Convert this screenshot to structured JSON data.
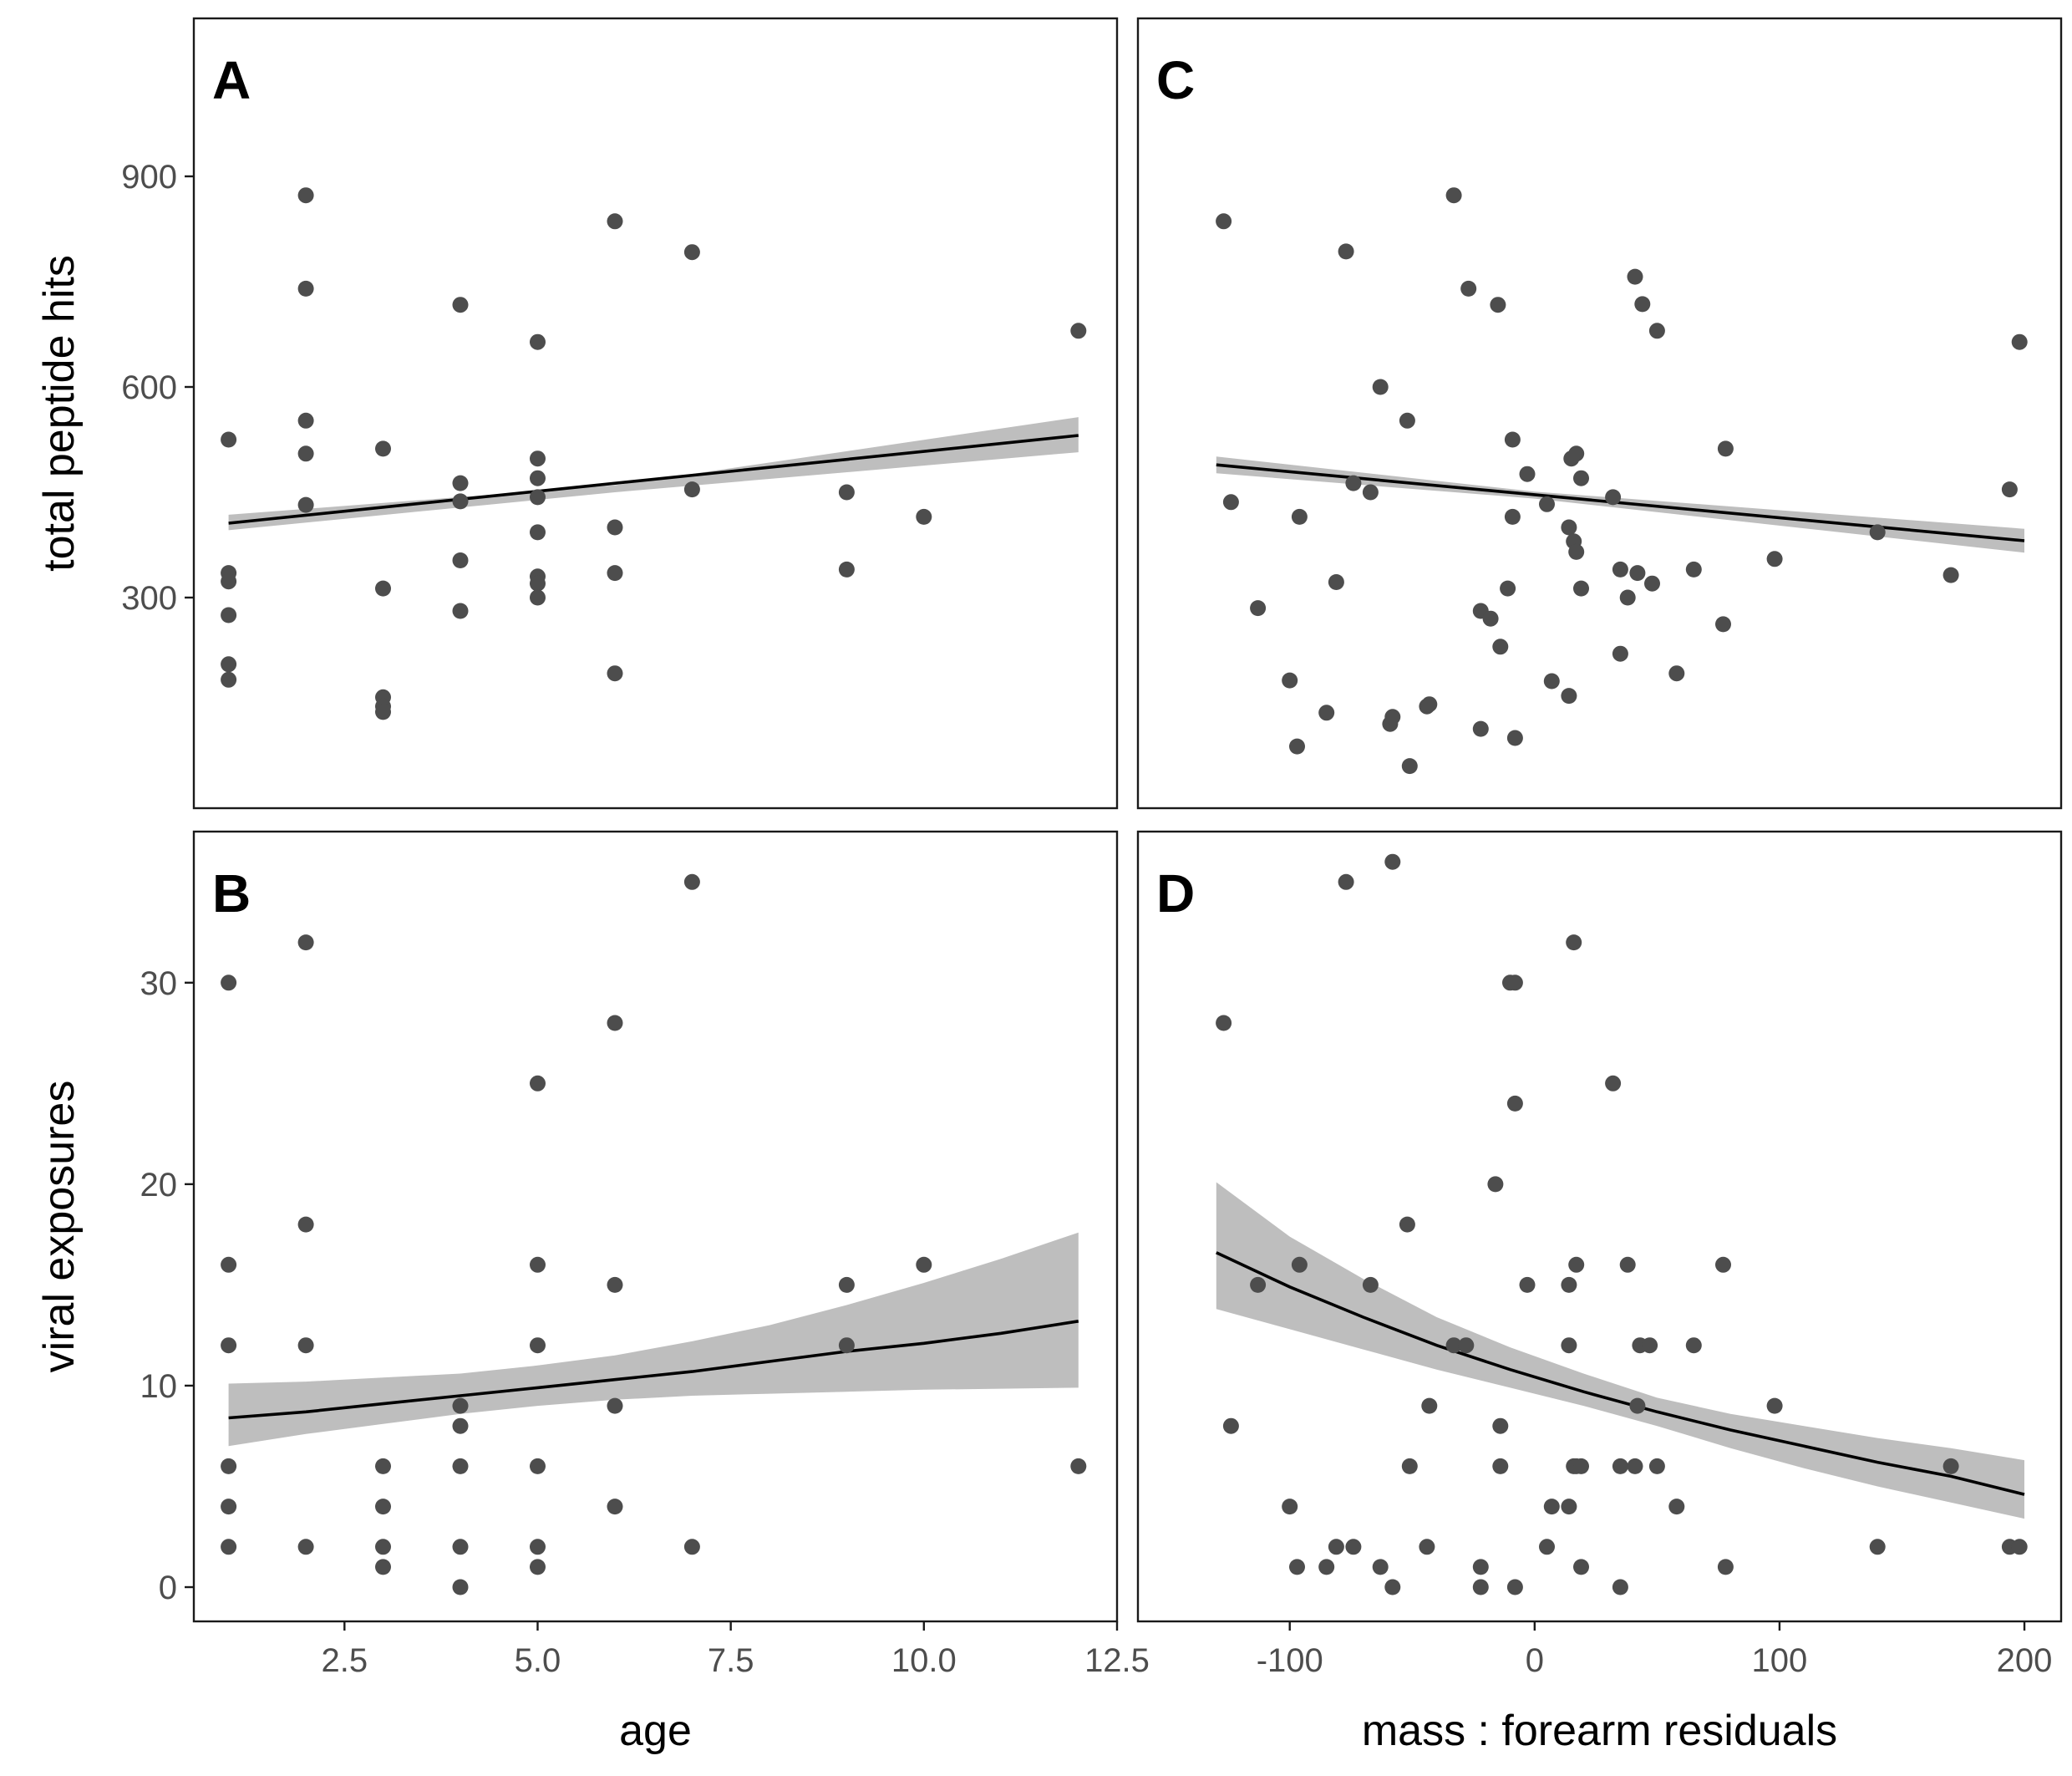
{
  "colors": {
    "point": "#4d4d4d",
    "line": "#000000",
    "ribbon": "#bebebe",
    "frame": "#1a1a1a",
    "tick_text": "#4d4d4d"
  },
  "chart_data": [
    {
      "panel": "A",
      "type": "scatter",
      "xlabel": "",
      "ylabel": "total peptide hits",
      "xlim": [
        0.55,
        12.5
      ],
      "ylim": [
        0,
        1125
      ],
      "xticks": [],
      "yticks": [
        300,
        600,
        900
      ],
      "points": [
        [
          1,
          525
        ],
        [
          1,
          335
        ],
        [
          1,
          323
        ],
        [
          1,
          275
        ],
        [
          1,
          205
        ],
        [
          1,
          183
        ],
        [
          2,
          873
        ],
        [
          2,
          740
        ],
        [
          2,
          552
        ],
        [
          2,
          505
        ],
        [
          2,
          432
        ],
        [
          3,
          512
        ],
        [
          3,
          313
        ],
        [
          3,
          158
        ],
        [
          3,
          145
        ],
        [
          3,
          137
        ],
        [
          4,
          717
        ],
        [
          4,
          463
        ],
        [
          4,
          437
        ],
        [
          4,
          353
        ],
        [
          4,
          281
        ],
        [
          5,
          664
        ],
        [
          5,
          498
        ],
        [
          5,
          470
        ],
        [
          5,
          443
        ],
        [
          5,
          393
        ],
        [
          5,
          330
        ],
        [
          5,
          320
        ],
        [
          5,
          300
        ],
        [
          6,
          836
        ],
        [
          6,
          400
        ],
        [
          6,
          335
        ],
        [
          6,
          192
        ],
        [
          7,
          792
        ],
        [
          7,
          454
        ],
        [
          9,
          450
        ],
        [
          9,
          340
        ],
        [
          10,
          415
        ],
        [
          12,
          680
        ]
      ],
      "fit": {
        "x": [
          1,
          12
        ],
        "y": [
          406,
          531
        ]
      },
      "ribbon": {
        "x": [
          1,
          6,
          12
        ],
        "lower": [
          396,
          450,
          507
        ],
        "upper": [
          418,
          460,
          557
        ]
      }
    },
    {
      "panel": "C",
      "type": "scatter",
      "xlabel": "",
      "ylabel": "",
      "xlim": [
        -162,
        215
      ],
      "ylim": [
        0,
        1125
      ],
      "xticks": [],
      "yticks": [],
      "points": [
        [
          -127,
          836
        ],
        [
          -124,
          436
        ],
        [
          -113,
          285
        ],
        [
          -100,
          182
        ],
        [
          -97,
          88
        ],
        [
          -96,
          415
        ],
        [
          -85,
          136
        ],
        [
          -81,
          322
        ],
        [
          -77,
          793
        ],
        [
          -74,
          463
        ],
        [
          -67,
          450
        ],
        [
          -63,
          600
        ],
        [
          -59,
          120
        ],
        [
          -58,
          130
        ],
        [
          -52,
          552
        ],
        [
          -51,
          60
        ],
        [
          -44,
          145
        ],
        [
          -43,
          148
        ],
        [
          -33,
          873
        ],
        [
          -27,
          740
        ],
        [
          -22,
          113
        ],
        [
          -22,
          281
        ],
        [
          -18,
          270
        ],
        [
          -15,
          717
        ],
        [
          -14,
          230
        ],
        [
          -11,
          313
        ],
        [
          -9,
          525
        ],
        [
          -9,
          415
        ],
        [
          -8,
          100
        ],
        [
          -3,
          476
        ],
        [
          5,
          433
        ],
        [
          7,
          181
        ],
        [
          14,
          160
        ],
        [
          14,
          400
        ],
        [
          15,
          498
        ],
        [
          16,
          380
        ],
        [
          17,
          365
        ],
        [
          17,
          505
        ],
        [
          19,
          470
        ],
        [
          19,
          313
        ],
        [
          32,
          443
        ],
        [
          35,
          220
        ],
        [
          35,
          340
        ],
        [
          38,
          300
        ],
        [
          41,
          757
        ],
        [
          42,
          335
        ],
        [
          44,
          718
        ],
        [
          48,
          320
        ],
        [
          50,
          680
        ],
        [
          58,
          192
        ],
        [
          65,
          340
        ],
        [
          77,
          262
        ],
        [
          78,
          512
        ],
        [
          98,
          355
        ],
        [
          140,
          393
        ],
        [
          170,
          332
        ],
        [
          194,
          454
        ],
        [
          198,
          664
        ]
      ],
      "fit": {
        "x": [
          -130,
          200
        ],
        "y": [
          489,
          381
        ]
      },
      "ribbon": {
        "x": [
          -130,
          0,
          200
        ],
        "lower": [
          477,
          441,
          364
        ],
        "upper": [
          501,
          451,
          398
        ]
      }
    },
    {
      "panel": "B",
      "type": "scatter",
      "xlabel": "age",
      "ylabel": "viral exposures",
      "xlim": [
        0.55,
        12.5
      ],
      "ylim": [
        -1.7,
        37.5
      ],
      "xticks": [
        2.5,
        5.0,
        7.5,
        10.0,
        12.5
      ],
      "yticks": [
        0,
        10,
        20,
        30
      ],
      "points": [
        [
          1,
          30
        ],
        [
          1,
          16
        ],
        [
          1,
          12
        ],
        [
          1,
          6
        ],
        [
          1,
          4
        ],
        [
          1,
          2
        ],
        [
          2,
          32
        ],
        [
          2,
          18
        ],
        [
          2,
          12
        ],
        [
          2,
          2
        ],
        [
          3,
          6
        ],
        [
          3,
          4
        ],
        [
          3,
          2
        ],
        [
          3,
          1
        ],
        [
          4,
          9
        ],
        [
          4,
          8
        ],
        [
          4,
          6
        ],
        [
          4,
          2
        ],
        [
          4,
          0
        ],
        [
          5,
          25
        ],
        [
          5,
          16
        ],
        [
          5,
          12
        ],
        [
          5,
          6
        ],
        [
          5,
          2
        ],
        [
          5,
          1
        ],
        [
          6,
          28
        ],
        [
          6,
          15
        ],
        [
          6,
          9
        ],
        [
          6,
          4
        ],
        [
          7,
          35
        ],
        [
          7,
          2
        ],
        [
          9,
          15
        ],
        [
          9,
          12
        ],
        [
          10,
          16
        ],
        [
          12,
          6
        ]
      ],
      "fit": {
        "x": [
          1,
          2,
          3,
          4,
          5,
          6,
          7,
          8,
          9,
          10,
          11,
          12
        ],
        "y": [
          8.4,
          8.7,
          9.1,
          9.5,
          9.9,
          10.3,
          10.7,
          11.2,
          11.7,
          12.1,
          12.6,
          13.2
        ]
      },
      "ribbon": {
        "x": [
          1,
          2,
          3,
          4,
          5,
          6,
          7,
          8,
          9,
          10,
          11,
          12
        ],
        "lower": [
          7.0,
          7.6,
          8.1,
          8.6,
          9.0,
          9.3,
          9.5,
          9.6,
          9.7,
          9.8,
          9.85,
          9.9
        ],
        "upper": [
          10.1,
          10.2,
          10.4,
          10.6,
          11.0,
          11.5,
          12.2,
          13.0,
          14.0,
          15.1,
          16.3,
          17.6
        ]
      }
    },
    {
      "panel": "D",
      "type": "scatter",
      "xlabel": "mass : forearm residuals",
      "ylabel": "",
      "xlim": [
        -162,
        215
      ],
      "ylim": [
        -1.7,
        37.5
      ],
      "xticks": [
        -100,
        0,
        100,
        200
      ],
      "yticks": [],
      "points": [
        [
          -127,
          28
        ],
        [
          -124,
          8
        ],
        [
          -113,
          15
        ],
        [
          -100,
          4
        ],
        [
          -97,
          1
        ],
        [
          -96,
          16
        ],
        [
          -85,
          1
        ],
        [
          -81,
          2
        ],
        [
          -77,
          35
        ],
        [
          -74,
          2
        ],
        [
          -67,
          15
        ],
        [
          -63,
          1
        ],
        [
          -58,
          36
        ],
        [
          -58,
          0
        ],
        [
          -52,
          18
        ],
        [
          -51,
          6
        ],
        [
          -44,
          2
        ],
        [
          -43,
          9
        ],
        [
          -33,
          12
        ],
        [
          -28,
          12
        ],
        [
          -22,
          1
        ],
        [
          -22,
          0
        ],
        [
          -16,
          20
        ],
        [
          -14,
          8
        ],
        [
          -14,
          6
        ],
        [
          -10,
          30
        ],
        [
          -8,
          30
        ],
        [
          -8,
          24
        ],
        [
          -8,
          0
        ],
        [
          -3,
          15
        ],
        [
          5,
          2
        ],
        [
          7,
          4
        ],
        [
          14,
          15
        ],
        [
          14,
          12
        ],
        [
          14,
          4
        ],
        [
          16,
          32
        ],
        [
          16,
          6
        ],
        [
          17,
          16
        ],
        [
          17,
          6
        ],
        [
          19,
          6
        ],
        [
          19,
          1
        ],
        [
          32,
          25
        ],
        [
          35,
          6
        ],
        [
          35,
          0
        ],
        [
          38,
          16
        ],
        [
          41,
          6
        ],
        [
          42,
          9
        ],
        [
          43,
          12
        ],
        [
          47,
          12
        ],
        [
          50,
          6
        ],
        [
          58,
          4
        ],
        [
          65,
          12
        ],
        [
          77,
          16
        ],
        [
          78,
          1
        ],
        [
          98,
          9
        ],
        [
          140,
          2
        ],
        [
          170,
          6
        ],
        [
          194,
          2
        ],
        [
          198,
          2
        ]
      ],
      "fit": {
        "x": [
          -130,
          -100,
          -70,
          -40,
          -10,
          20,
          50,
          80,
          110,
          140,
          170,
          200
        ],
        "y": [
          16.6,
          14.9,
          13.4,
          12.0,
          10.8,
          9.7,
          8.7,
          7.8,
          7.0,
          6.2,
          5.5,
          4.6
        ]
      },
      "ribbon": {
        "x": [
          -130,
          -100,
          -70,
          -40,
          -10,
          20,
          50,
          80,
          110,
          140,
          170,
          200
        ],
        "lower": [
          13.8,
          12.8,
          11.8,
          10.8,
          9.9,
          9.0,
          8.0,
          6.9,
          5.9,
          5.0,
          4.2,
          3.4
        ],
        "upper": [
          20.1,
          17.4,
          15.3,
          13.4,
          11.9,
          10.6,
          9.4,
          8.6,
          8.0,
          7.4,
          6.9,
          6.3
        ]
      }
    }
  ]
}
